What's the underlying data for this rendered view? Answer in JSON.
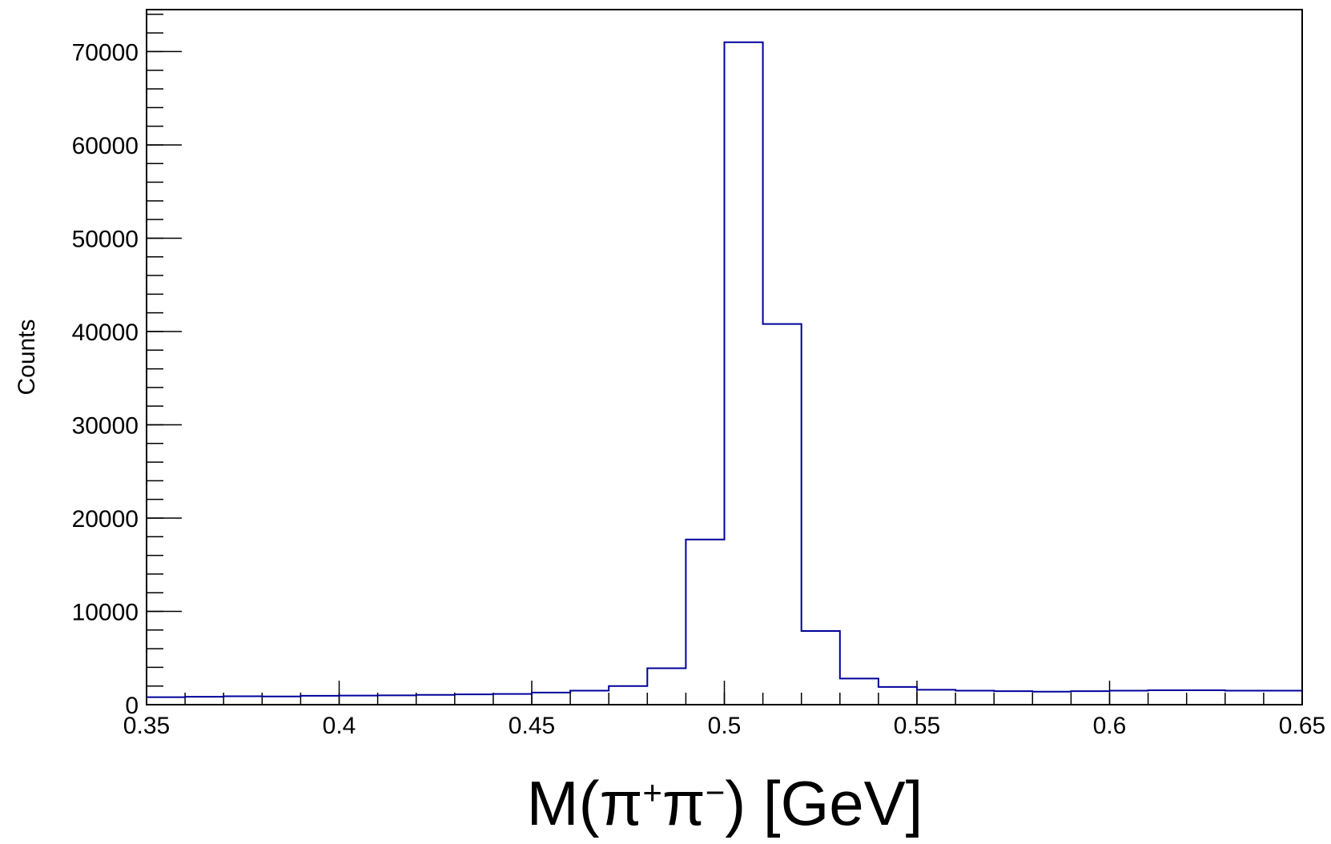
{
  "chart_data": {
    "type": "bar",
    "histogram": true,
    "xlabel_parts": {
      "prefix": "M(π",
      "plus": "+",
      "mid": "π",
      "minus": "−",
      "suffix": ")  [GeV]"
    },
    "ylabel": "Counts",
    "xlim": [
      0.35,
      0.65
    ],
    "ylim": [
      0,
      74500
    ],
    "bin_edges": [
      0.35,
      0.36,
      0.37,
      0.38,
      0.39,
      0.4,
      0.41,
      0.42,
      0.43,
      0.44,
      0.45,
      0.46,
      0.47,
      0.48,
      0.49,
      0.5,
      0.51,
      0.52,
      0.53,
      0.54,
      0.55,
      0.56,
      0.57,
      0.58,
      0.59,
      0.6,
      0.61,
      0.62,
      0.63,
      0.64,
      0.65
    ],
    "values": [
      800,
      850,
      900,
      880,
      950,
      980,
      1000,
      1050,
      1100,
      1150,
      1300,
      1500,
      2000,
      3900,
      17700,
      71000,
      40800,
      7900,
      2800,
      1900,
      1600,
      1500,
      1450,
      1400,
      1450,
      1500,
      1550,
      1550,
      1500,
      1500
    ],
    "x_ticks": [
      "0.35",
      "0.4",
      "0.45",
      "0.5",
      "0.55",
      "0.6",
      "0.65"
    ],
    "y_ticks": [
      "0",
      "10000",
      "20000",
      "30000",
      "40000",
      "50000",
      "60000",
      "70000"
    ],
    "grid": false,
    "line_color": "#00009a"
  }
}
